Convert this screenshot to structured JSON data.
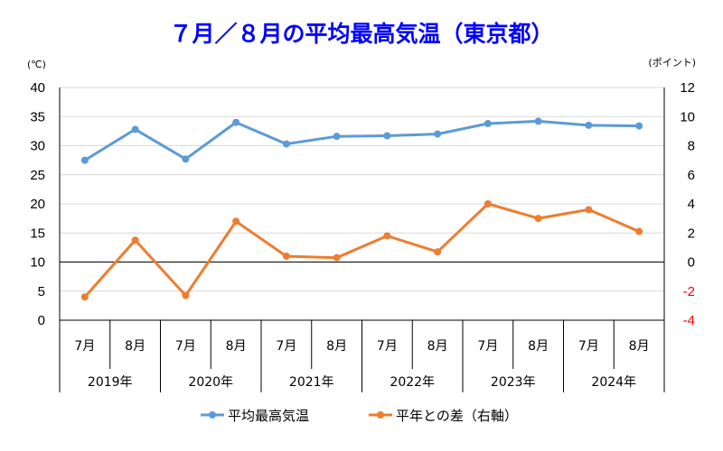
{
  "chart_data": {
    "type": "line",
    "title": "７月／８月の平均最高気温（東京都）",
    "title_color": "#0000FF",
    "left_unit": "(℃)",
    "right_unit": "(ポイント)",
    "categories": [
      "7月",
      "8月",
      "7月",
      "8月",
      "7月",
      "8月",
      "7月",
      "8月",
      "7月",
      "8月",
      "7月",
      "8月"
    ],
    "year_groups": [
      "2019年",
      "2020年",
      "2021年",
      "2022年",
      "2023年",
      "2024年"
    ],
    "left_axis": {
      "min": 0,
      "max": 40,
      "ticks": [
        "0",
        "5",
        "10",
        "15",
        "20",
        "25",
        "30",
        "35",
        "40"
      ]
    },
    "right_axis": {
      "min": -4,
      "max": 12,
      "ticks": [
        "-4",
        "-2",
        "0",
        "2",
        "4",
        "6",
        "8",
        "10",
        "12"
      ],
      "negative_color": "#FF0000"
    },
    "grid": true,
    "legend_position": "bottom",
    "series": [
      {
        "name": "平均最高気温",
        "axis": "left",
        "color": "#5B9BD5",
        "values": [
          27.5,
          32.8,
          27.7,
          34.0,
          30.3,
          31.6,
          31.7,
          32.0,
          33.8,
          34.2,
          33.5,
          33.4
        ]
      },
      {
        "name": "平年との差（右軸）",
        "axis": "right",
        "color": "#ED7D31",
        "values": [
          -2.4,
          1.5,
          -2.3,
          2.8,
          0.4,
          0.3,
          1.8,
          0.7,
          4.0,
          3.0,
          3.6,
          2.1
        ]
      }
    ]
  }
}
